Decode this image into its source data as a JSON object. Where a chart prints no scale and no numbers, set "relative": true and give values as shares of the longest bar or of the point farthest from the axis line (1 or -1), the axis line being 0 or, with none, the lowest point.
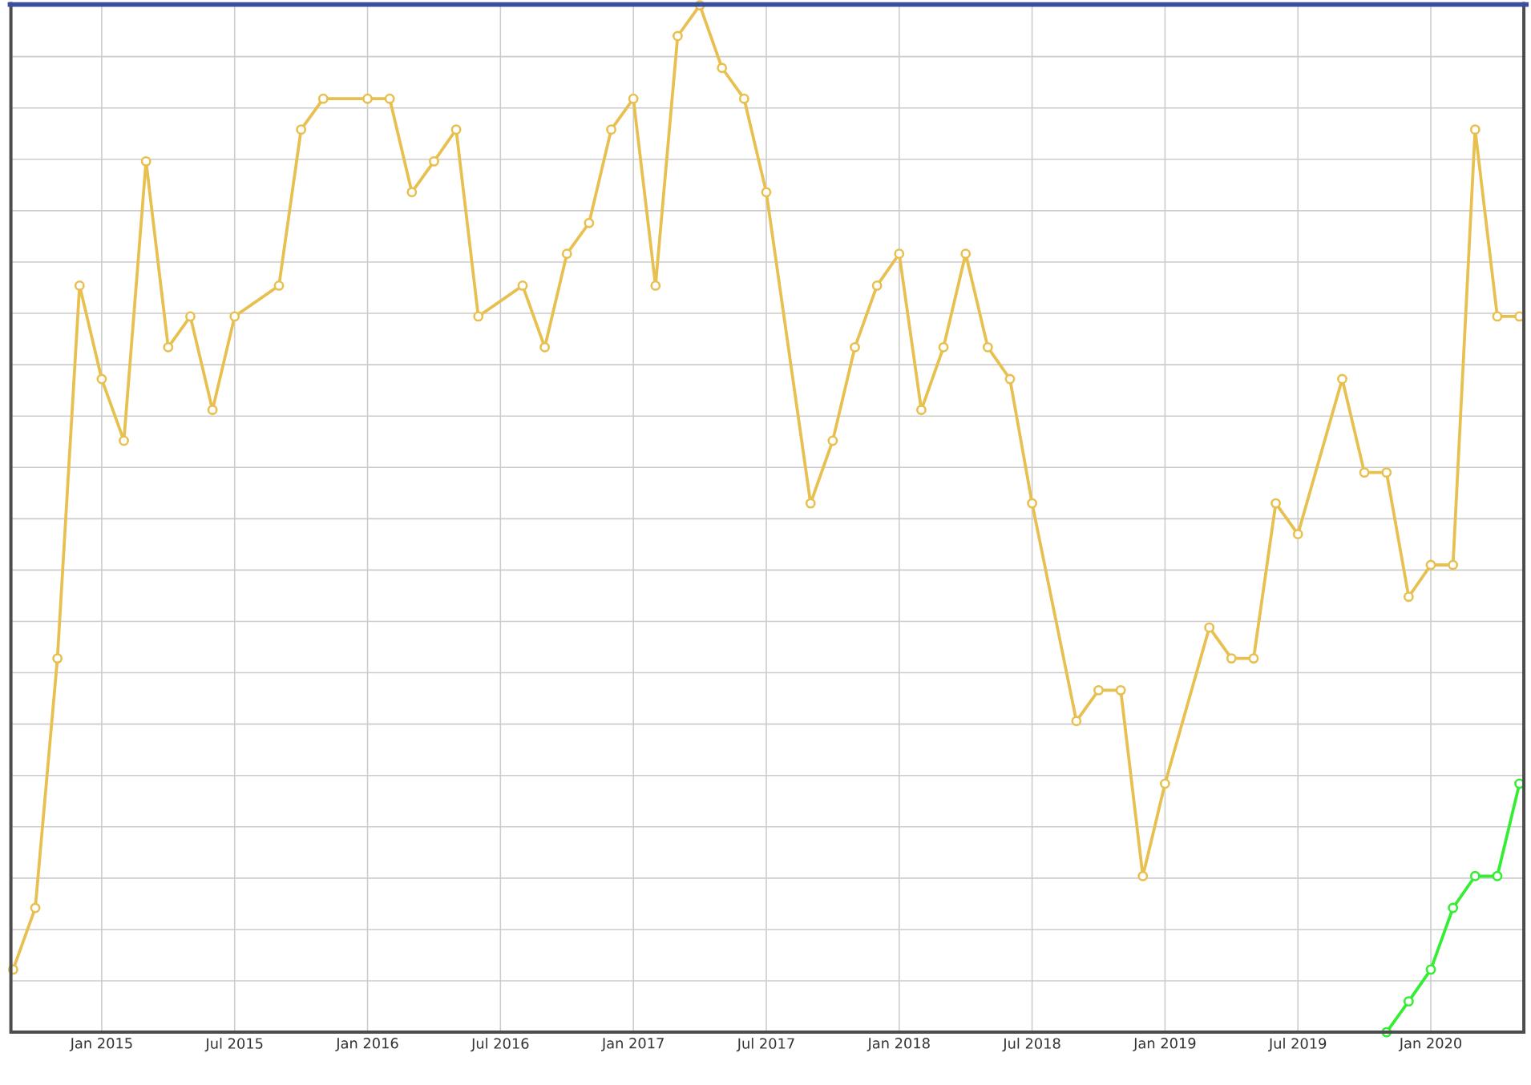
{
  "chart_data": {
    "type": "line",
    "relative": true,
    "grid": true,
    "marker": "circle",
    "line_style": "solid",
    "xlim": [
      "2014-08-28",
      "2020-05-07"
    ],
    "xticks": [
      {
        "value": "2015-01",
        "label": "Jan 2015"
      },
      {
        "value": "2015-07",
        "label": "Jul 2015"
      },
      {
        "value": "2016-01",
        "label": "Jan 2016"
      },
      {
        "value": "2016-07",
        "label": "Jul 2016"
      },
      {
        "value": "2017-01",
        "label": "Jan 2017"
      },
      {
        "value": "2017-07",
        "label": "Jul 2017"
      },
      {
        "value": "2018-01",
        "label": "Jan 2018"
      },
      {
        "value": "2018-07",
        "label": "Jul 2018"
      },
      {
        "value": "2019-01",
        "label": "Jan 2019"
      },
      {
        "value": "2019-07",
        "label": "Jul 2019"
      },
      {
        "value": "2020-01",
        "label": "Jan 2020"
      }
    ],
    "series": [
      {
        "color": "#e8c050",
        "x": [
          "2014-09",
          "2014-10",
          "2014-11",
          "2014-12",
          "2015-01",
          "2015-02",
          "2015-03",
          "2015-04",
          "2015-05",
          "2015-06",
          "2015-07",
          "2015-09",
          "2015-10",
          "2015-11",
          "2016-01",
          "2016-02",
          "2016-03",
          "2016-04",
          "2016-05",
          "2016-06",
          "2016-08",
          "2016-09",
          "2016-10",
          "2016-11",
          "2016-12",
          "2017-01",
          "2017-02",
          "2017-03",
          "2017-04",
          "2017-05",
          "2017-06",
          "2017-07",
          "2017-09",
          "2017-10",
          "2017-11",
          "2017-12",
          "2018-01",
          "2018-02",
          "2018-03",
          "2018-04",
          "2018-05",
          "2018-06",
          "2018-07",
          "2018-09",
          "2018-10",
          "2018-11",
          "2018-12",
          "2019-01",
          "2019-03",
          "2019-04",
          "2019-05",
          "2019-06",
          "2019-07",
          "2019-09",
          "2019-10",
          "2019-11",
          "2019-12",
          "2020-01",
          "2020-02",
          "2020-03",
          "2020-04",
          "2020-05"
        ],
        "values": [
          0.061,
          0.121,
          0.364,
          0.727,
          0.636,
          0.576,
          0.848,
          0.667,
          0.697,
          0.606,
          0.697,
          0.727,
          0.879,
          0.909,
          0.909,
          0.909,
          0.818,
          0.848,
          0.879,
          0.697,
          0.727,
          0.667,
          0.758,
          0.788,
          0.879,
          0.909,
          0.727,
          0.97,
          1.0,
          0.939,
          0.909,
          0.818,
          0.515,
          0.576,
          0.667,
          0.727,
          0.758,
          0.606,
          0.667,
          0.758,
          0.667,
          0.636,
          0.515,
          0.303,
          0.333,
          0.333,
          0.152,
          0.242,
          0.394,
          0.364,
          0.364,
          0.515,
          0.485,
          0.636,
          0.545,
          0.545,
          0.424,
          0.455,
          0.455,
          0.879,
          0.697,
          0.697
        ]
      },
      {
        "color": "#33ee33",
        "x": [
          "2019-11",
          "2019-12",
          "2020-01",
          "2020-02",
          "2020-03",
          "2020-04",
          "2020-05"
        ],
        "values": [
          0.0,
          0.03,
          0.061,
          0.121,
          0.152,
          0.152,
          0.242
        ]
      }
    ]
  }
}
